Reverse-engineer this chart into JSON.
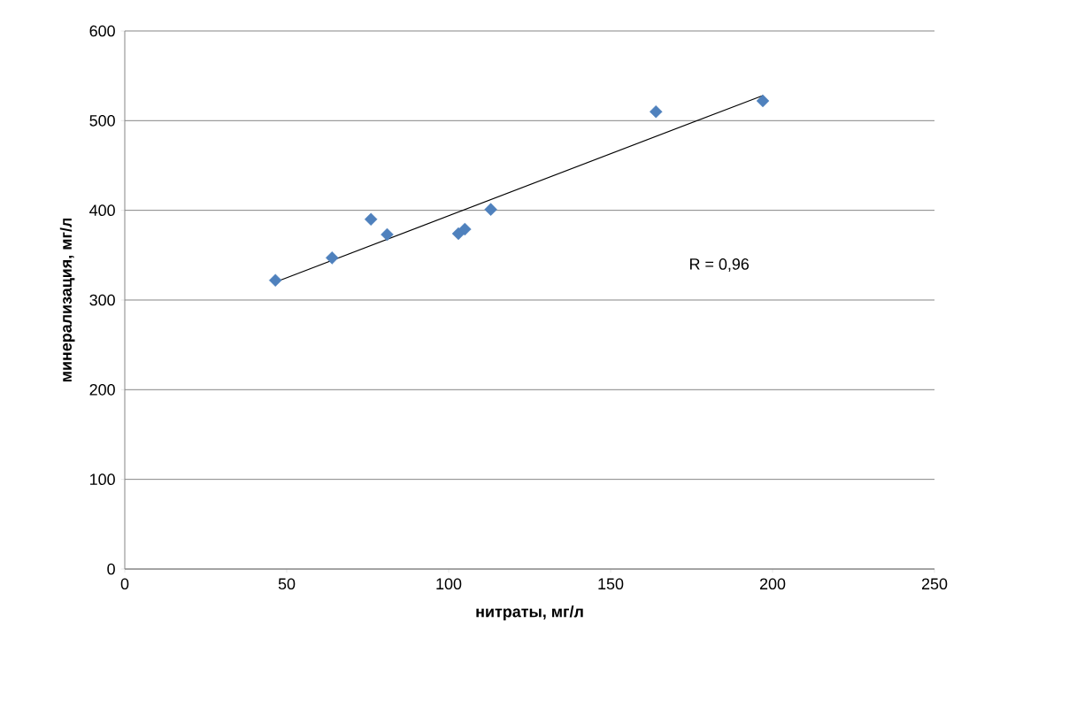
{
  "chart_data": {
    "type": "scatter",
    "xlabel": "нитраты, мг/л",
    "ylabel": "минерализация, мг/л",
    "series": [
      {
        "color": "#4f81bd",
        "marker": "diamond",
        "x": [
          46.5,
          64,
          76,
          81,
          103,
          105,
          113,
          164,
          197
        ],
        "values": [
          322,
          347,
          390,
          373,
          374,
          379,
          401,
          510,
          522
        ]
      },
      {
        "type": "line",
        "color": "#000000",
        "marker": "none",
        "line_style": "solid",
        "x": [
          46.5,
          197
        ],
        "values": [
          320,
          528
        ]
      }
    ],
    "xlim": [
      0,
      250
    ],
    "ylim": [
      0,
      600
    ],
    "xticks": [
      0,
      50,
      100,
      150,
      200,
      250
    ],
    "yticks": [
      0,
      100,
      200,
      300,
      400,
      500,
      600
    ],
    "grid": "y",
    "annotations": [
      "R = 0,96"
    ]
  }
}
